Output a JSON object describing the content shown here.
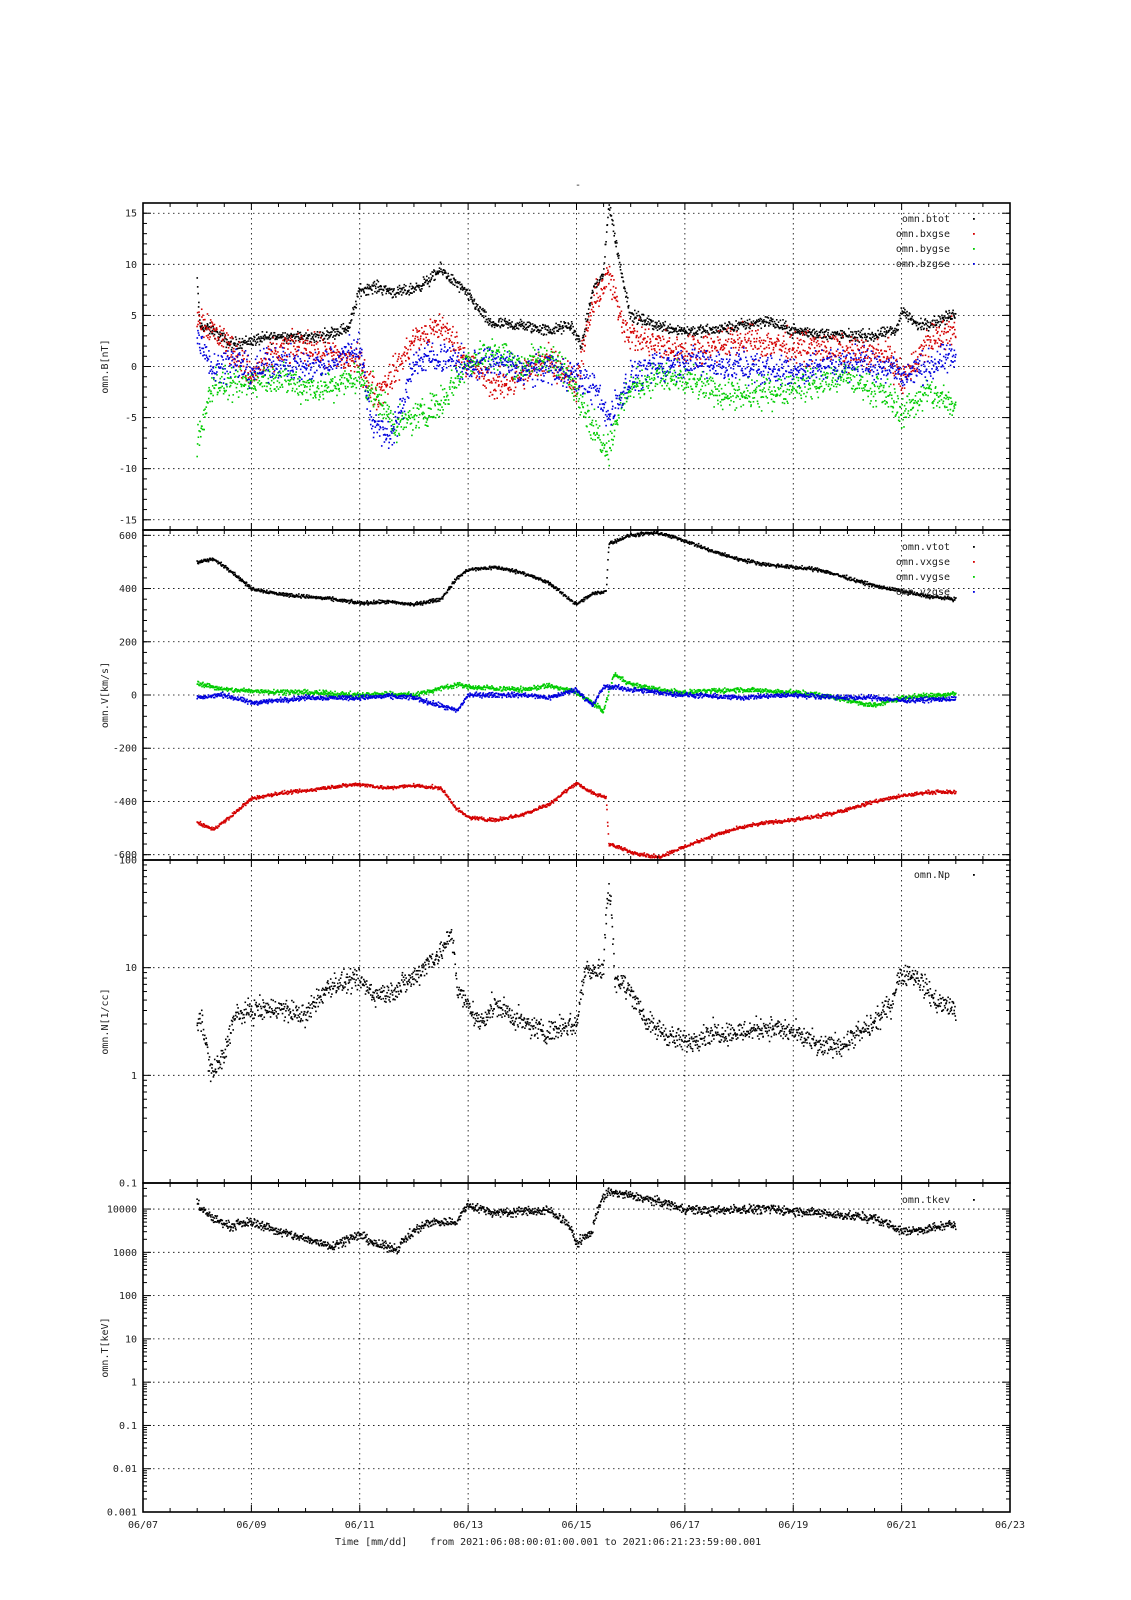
{
  "figure": {
    "title": "-",
    "footer": {
      "xlabel": "Time [mm/dd]",
      "range_text": "from 2021:06:08:00:01:00.001  to  2021:06:21:23:59:00.001"
    }
  },
  "colors": {
    "black": "#000000",
    "red": "#d40000",
    "green": "#00cc00",
    "blue": "#0000dd"
  },
  "chart_data": [
    {
      "type": "scatter",
      "ylabel": "omn.B[nT]",
      "ylim": [
        -16,
        16
      ],
      "yticks": [
        -15,
        -10,
        -5,
        0,
        5,
        10,
        15
      ],
      "y_scale": "linear",
      "xlim": [
        "06/07",
        "06/23"
      ],
      "xticks": [
        "06/07",
        "06/09",
        "06/11",
        "06/13",
        "06/15",
        "06/17",
        "06/19",
        "06/21",
        "06/23"
      ],
      "grid": true,
      "legend_placement": "top-right",
      "series": [
        {
          "name": "omn.btot",
          "color": "black",
          "noise": 0.5,
          "x": [
            8.0,
            8.05,
            8.3,
            8.6,
            9.0,
            9.5,
            10.0,
            10.3,
            10.8,
            11.0,
            11.3,
            11.7,
            12.0,
            12.3,
            12.5,
            12.8,
            13.0,
            13.4,
            14.0,
            14.5,
            14.9,
            15.1,
            15.3,
            15.5,
            15.6,
            15.8,
            16.0,
            16.5,
            17.0,
            17.5,
            18.0,
            18.5,
            19.0,
            19.5,
            20.0,
            20.5,
            20.9,
            21.0,
            21.3,
            21.7,
            22.0
          ],
          "y": [
            8.5,
            4.0,
            3.5,
            2.2,
            2.5,
            3.0,
            2.8,
            3.0,
            3.8,
            7.5,
            7.8,
            7.2,
            7.6,
            8.5,
            9.5,
            8.0,
            7.0,
            4.2,
            4.0,
            3.5,
            4.0,
            2.0,
            7.5,
            9.0,
            16.0,
            10.0,
            5.0,
            4.0,
            3.5,
            3.5,
            4.0,
            4.5,
            3.5,
            3.2,
            3.0,
            3.0,
            3.5,
            5.5,
            4.0,
            4.5,
            5.2
          ]
        },
        {
          "name": "omn.bxgse",
          "color": "red",
          "noise": 1.3,
          "x": [
            8.0,
            8.3,
            8.7,
            9.0,
            9.5,
            10.0,
            10.5,
            11.0,
            11.3,
            11.7,
            12.0,
            12.5,
            13.0,
            13.5,
            14.0,
            14.5,
            15.0,
            15.3,
            15.6,
            15.8,
            16.0,
            16.5,
            17.0,
            18.0,
            19.0,
            20.0,
            20.8,
            21.0,
            21.5,
            22.0
          ],
          "y": [
            5.0,
            3.5,
            1.5,
            -1.0,
            1.5,
            2.0,
            1.0,
            0.5,
            -3.0,
            0.0,
            2.5,
            4.0,
            0.5,
            -2.0,
            -1.0,
            1.0,
            -2.0,
            6.0,
            9.0,
            5.0,
            3.0,
            2.0,
            1.5,
            2.5,
            2.0,
            1.5,
            1.0,
            -1.5,
            2.5,
            3.5
          ]
        },
        {
          "name": "omn.bygse",
          "color": "green",
          "noise": 1.3,
          "x": [
            8.0,
            8.3,
            8.7,
            9.0,
            9.5,
            10.0,
            10.5,
            11.0,
            11.3,
            11.7,
            12.0,
            12.5,
            13.0,
            13.5,
            14.0,
            14.5,
            15.0,
            15.3,
            15.6,
            15.8,
            16.0,
            16.5,
            17.0,
            18.0,
            19.0,
            20.0,
            20.8,
            21.0,
            21.5,
            22.0
          ],
          "y": [
            -7.5,
            -1.5,
            -2.0,
            -1.5,
            -1.0,
            -2.0,
            -2.0,
            -1.0,
            -3.0,
            -6.0,
            -5.0,
            -3.5,
            0.5,
            1.5,
            0.0,
            1.0,
            -2.0,
            -6.0,
            -8.0,
            -4.0,
            -2.0,
            -1.0,
            -1.5,
            -3.0,
            -2.0,
            -1.0,
            -3.0,
            -4.5,
            -2.5,
            -4.0
          ]
        },
        {
          "name": "omn.bzgse",
          "color": "blue",
          "noise": 1.3,
          "x": [
            8.0,
            8.3,
            8.7,
            9.0,
            9.5,
            10.0,
            10.5,
            11.0,
            11.2,
            11.5,
            11.8,
            12.0,
            12.5,
            13.0,
            13.5,
            14.0,
            14.5,
            15.0,
            15.3,
            15.6,
            15.8,
            16.0,
            16.5,
            17.0,
            18.0,
            19.0,
            20.0,
            20.8,
            21.0,
            21.5,
            22.0
          ],
          "y": [
            3.0,
            0.0,
            0.5,
            -0.5,
            0.5,
            0.0,
            0.5,
            2.0,
            -5.0,
            -7.0,
            -4.0,
            0.5,
            1.0,
            0.0,
            0.5,
            -0.5,
            0.0,
            -1.0,
            -2.0,
            -5.0,
            -3.0,
            -1.0,
            0.0,
            0.5,
            0.0,
            -0.5,
            0.5,
            0.0,
            -1.0,
            0.0,
            1.0
          ]
        }
      ]
    },
    {
      "type": "scatter",
      "ylabel": "omn.V[km/s]",
      "ylim": [
        -620,
        620
      ],
      "yticks": [
        -600,
        -400,
        -200,
        0,
        200,
        400,
        600
      ],
      "y_scale": "linear",
      "xlim": [
        "06/07",
        "06/23"
      ],
      "xticks": [
        "06/07",
        "06/09",
        "06/11",
        "06/13",
        "06/15",
        "06/17",
        "06/19",
        "06/21",
        "06/23"
      ],
      "grid": true,
      "legend_placement": "top-right",
      "series": [
        {
          "name": "omn.vtot",
          "color": "black",
          "noise": 6,
          "x": [
            8.0,
            8.3,
            8.6,
            9.0,
            9.5,
            10.0,
            10.5,
            11.0,
            11.5,
            12.0,
            12.5,
            12.8,
            13.0,
            13.5,
            14.0,
            14.5,
            15.0,
            15.3,
            15.55,
            15.6,
            16.0,
            16.5,
            17.0,
            17.5,
            18.0,
            18.5,
            19.0,
            19.5,
            20.0,
            20.5,
            21.0,
            21.5,
            22.0
          ],
          "y": [
            500,
            510,
            470,
            400,
            380,
            370,
            360,
            345,
            350,
            340,
            360,
            440,
            470,
            480,
            460,
            420,
            340,
            380,
            390,
            570,
            600,
            610,
            580,
            540,
            510,
            490,
            480,
            470,
            440,
            410,
            390,
            370,
            360
          ]
        },
        {
          "name": "omn.vxgse",
          "color": "red",
          "noise": 6,
          "x": [
            8.0,
            8.3,
            8.6,
            9.0,
            9.5,
            10.0,
            10.5,
            11.0,
            11.5,
            12.0,
            12.5,
            12.8,
            13.0,
            13.5,
            14.0,
            14.5,
            15.0,
            15.3,
            15.55,
            15.6,
            16.0,
            16.5,
            17.0,
            17.5,
            18.0,
            18.5,
            19.0,
            19.5,
            20.0,
            20.5,
            21.0,
            21.5,
            22.0
          ],
          "y": [
            -480,
            -505,
            -460,
            -390,
            -370,
            -360,
            -345,
            -335,
            -350,
            -340,
            -350,
            -430,
            -460,
            -470,
            -450,
            -410,
            -330,
            -370,
            -385,
            -560,
            -590,
            -610,
            -570,
            -530,
            -500,
            -480,
            -470,
            -455,
            -430,
            -400,
            -380,
            -365,
            -365
          ]
        },
        {
          "name": "omn.vygse",
          "color": "green",
          "noise": 8,
          "x": [
            8.0,
            8.5,
            9.0,
            10.0,
            11.0,
            11.5,
            12.0,
            12.8,
            13.0,
            14.0,
            14.5,
            15.0,
            15.3,
            15.5,
            15.7,
            16.0,
            16.5,
            17.0,
            18.0,
            19.0,
            19.5,
            20.0,
            20.5,
            21.0,
            22.0
          ],
          "y": [
            45,
            20,
            15,
            10,
            0,
            5,
            0,
            40,
            30,
            20,
            35,
            10,
            -30,
            -60,
            80,
            40,
            20,
            10,
            20,
            10,
            0,
            -20,
            -40,
            -10,
            5
          ]
        },
        {
          "name": "omn.vzgse",
          "color": "blue",
          "noise": 8,
          "x": [
            8.0,
            8.5,
            9.0,
            10.0,
            11.0,
            11.5,
            12.0,
            12.8,
            13.0,
            14.0,
            14.5,
            15.0,
            15.3,
            15.5,
            15.7,
            16.0,
            16.5,
            17.0,
            18.0,
            19.0,
            19.5,
            20.0,
            20.5,
            21.0,
            22.0
          ],
          "y": [
            -10,
            0,
            -30,
            -10,
            -10,
            -5,
            -10,
            -60,
            0,
            0,
            -10,
            20,
            -40,
            30,
            30,
            20,
            10,
            0,
            -10,
            0,
            -5,
            -10,
            -10,
            -20,
            -15
          ]
        }
      ]
    },
    {
      "type": "scatter",
      "ylabel": "omn.N[1/cc]",
      "ylim": [
        0.1,
        100
      ],
      "yticks": [
        0.1,
        1,
        10,
        100
      ],
      "y_scale": "log",
      "xlim": [
        "06/07",
        "06/23"
      ],
      "xticks": [
        "06/07",
        "06/09",
        "06/11",
        "06/13",
        "06/15",
        "06/17",
        "06/19",
        "06/21",
        "06/23"
      ],
      "grid": true,
      "legend_placement": "top-right",
      "series": [
        {
          "name": "omn.Np",
          "color": "black",
          "noise": 0.09,
          "x": [
            8.0,
            8.05,
            8.25,
            8.5,
            8.7,
            9.0,
            9.5,
            10.0,
            10.5,
            11.0,
            11.3,
            11.6,
            12.0,
            12.5,
            12.7,
            12.8,
            13.0,
            13.2,
            13.5,
            14.0,
            14.5,
            14.8,
            15.0,
            15.2,
            15.5,
            15.6,
            15.7,
            16.0,
            16.3,
            16.8,
            17.0,
            17.5,
            18.0,
            18.5,
            19.0,
            19.5,
            20.0,
            20.5,
            20.8,
            21.0,
            21.3,
            21.6,
            22.0
          ],
          "y": [
            2.5,
            3.5,
            1.0,
            1.5,
            3.5,
            4.0,
            4.2,
            3.5,
            7.0,
            7.5,
            5.5,
            6.0,
            8.0,
            14.0,
            20.0,
            6.0,
            4.5,
            3.0,
            4.5,
            3.0,
            2.5,
            3.0,
            2.8,
            10.0,
            9.0,
            55.0,
            8.0,
            6.0,
            3.0,
            2.2,
            2.0,
            2.5,
            2.5,
            2.8,
            2.5,
            1.8,
            2.0,
            3.0,
            4.5,
            9.0,
            8.0,
            5.0,
            4.0
          ]
        }
      ]
    },
    {
      "type": "scatter",
      "ylabel": "omn.T[keV]",
      "ylim": [
        0.001,
        40000
      ],
      "yticks": [
        0.001,
        0.01,
        0.1,
        1,
        10,
        100,
        1000,
        10000
      ],
      "ytick_labels": [
        "0.001",
        "0.01",
        "0.1",
        "1",
        "10",
        "100",
        "1000",
        "10000"
      ],
      "y_scale": "log",
      "xlim": [
        "06/07",
        "06/23"
      ],
      "xticks": [
        "06/07",
        "06/09",
        "06/11",
        "06/13",
        "06/15",
        "06/17",
        "06/19",
        "06/21",
        "06/23"
      ],
      "grid": true,
      "legend_placement": "top-right",
      "series": [
        {
          "name": "omn.tkev",
          "color": "black",
          "noise": 0.09,
          "x": [
            8.0,
            8.05,
            8.3,
            8.6,
            9.0,
            9.5,
            10.0,
            10.5,
            11.0,
            11.3,
            11.7,
            12.0,
            12.3,
            12.8,
            13.0,
            13.5,
            14.0,
            14.5,
            14.8,
            15.0,
            15.3,
            15.6,
            16.0,
            16.5,
            17.0,
            17.5,
            18.0,
            18.5,
            19.0,
            19.5,
            20.0,
            20.5,
            21.0,
            21.5,
            22.0
          ],
          "y": [
            15000,
            10000,
            6000,
            4000,
            5000,
            3000,
            2000,
            1400,
            2500,
            1500,
            1200,
            3000,
            5000,
            5000,
            12000,
            8000,
            9000,
            9000,
            5000,
            1500,
            3000,
            25000,
            20000,
            15000,
            10000,
            9000,
            10000,
            10000,
            9000,
            8000,
            7000,
            6000,
            3000,
            3500,
            4500
          ]
        }
      ]
    }
  ]
}
